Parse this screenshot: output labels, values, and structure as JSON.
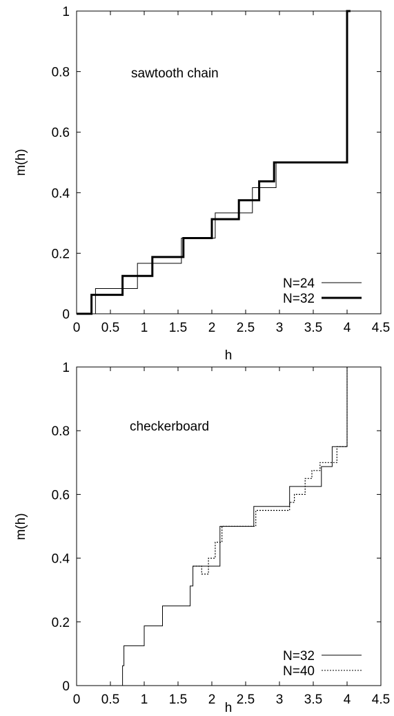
{
  "chart_data": [
    {
      "type": "line",
      "title": "",
      "annotation": "sawtooth chain",
      "xlabel": "h",
      "ylabel": "m(h)",
      "xlim": [
        0,
        4.5
      ],
      "ylim": [
        0,
        1
      ],
      "xticks": [
        0,
        0.5,
        1,
        1.5,
        2,
        2.5,
        3,
        3.5,
        4,
        4.5
      ],
      "xtick_labels": [
        "0",
        "0.5",
        "1",
        "1.5",
        "2",
        "2.5",
        "3",
        "3.5",
        "4",
        "4.5"
      ],
      "yticks": [
        0,
        0.2,
        0.4,
        0.6,
        0.8,
        1
      ],
      "ytick_labels": [
        "0",
        "0.2",
        "0.4",
        "0.6",
        "0.8",
        "1"
      ],
      "legend_position": "bottom-right",
      "series": [
        {
          "name": "N=24",
          "style": "thin",
          "x": [
            0,
            0.28,
            0.28,
            0.9,
            0.9,
            1.2,
            1.2,
            1.55,
            1.55,
            2.05,
            2.05,
            2.45,
            2.45,
            2.6,
            2.6,
            2.8,
            2.8,
            2.95,
            2.95,
            4.0,
            4.0,
            4.05
          ],
          "y": [
            0,
            0,
            0.0833,
            0.0833,
            0.1667,
            0.1667,
            0.1667,
            0.1667,
            0.25,
            0.25,
            0.3333,
            0.3333,
            0.3333,
            0.3333,
            0.4167,
            0.4167,
            0.4167,
            0.4167,
            0.5,
            0.5,
            1.0,
            1.0
          ]
        },
        {
          "name": "N=32",
          "style": "thick",
          "x": [
            0,
            0.22,
            0.22,
            0.68,
            0.68,
            1.12,
            1.12,
            1.58,
            1.58,
            2.0,
            2.0,
            2.4,
            2.4,
            2.7,
            2.7,
            2.92,
            2.92,
            4.0,
            4.0,
            4.05
          ],
          "y": [
            0,
            0,
            0.0625,
            0.0625,
            0.125,
            0.125,
            0.1875,
            0.1875,
            0.25,
            0.25,
            0.3125,
            0.3125,
            0.375,
            0.375,
            0.4375,
            0.4375,
            0.5,
            0.5,
            1.0,
            1.0
          ]
        }
      ]
    },
    {
      "type": "line",
      "title": "",
      "annotation": "checkerboard",
      "xlabel": "h",
      "ylabel": "m(h)",
      "xlim": [
        0,
        4.5
      ],
      "ylim": [
        0,
        1
      ],
      "xticks": [
        0,
        0.5,
        1,
        1.5,
        2,
        2.5,
        3,
        3.5,
        4,
        4.5
      ],
      "xtick_labels": [
        "0",
        "0.5",
        "1",
        "1.5",
        "2",
        "2.5",
        "3",
        "3.5",
        "4",
        "4.5"
      ],
      "yticks": [
        0,
        0.2,
        0.4,
        0.6,
        0.8,
        1
      ],
      "ytick_labels": [
        "0",
        "0.2",
        "0.4",
        "0.6",
        "0.8",
        "1"
      ],
      "legend_position": "bottom-right",
      "series": [
        {
          "name": "N=32",
          "style": "solid",
          "x": [
            0,
            0.68,
            0.68,
            0.7,
            0.7,
            1.0,
            1.0,
            1.27,
            1.27,
            1.68,
            1.68,
            1.72,
            1.72,
            2.12,
            2.12,
            2.62,
            2.62,
            3.15,
            3.15,
            3.62,
            3.62,
            3.78,
            3.78,
            4.0,
            4.0
          ],
          "y": [
            0,
            0,
            0.0625,
            0.0625,
            0.125,
            0.125,
            0.1875,
            0.1875,
            0.25,
            0.25,
            0.3125,
            0.3125,
            0.375,
            0.375,
            0.5,
            0.5,
            0.5625,
            0.5625,
            0.625,
            0.625,
            0.6875,
            0.6875,
            0.75,
            0.75,
            1.0
          ]
        },
        {
          "name": "N=40",
          "style": "dotted",
          "x": [
            1.72,
            1.85,
            1.85,
            1.95,
            1.95,
            2.05,
            2.05,
            2.15,
            2.15,
            2.65,
            2.65,
            3.15,
            3.15,
            3.22,
            3.22,
            3.38,
            3.38,
            3.48,
            3.48,
            3.6,
            3.6,
            3.85,
            3.85,
            4.0,
            4.0
          ],
          "y": [
            0.375,
            0.375,
            0.35,
            0.35,
            0.4,
            0.4,
            0.45,
            0.45,
            0.5,
            0.5,
            0.55,
            0.55,
            0.575,
            0.575,
            0.6,
            0.6,
            0.65,
            0.65,
            0.675,
            0.675,
            0.7,
            0.7,
            0.75,
            0.75,
            1.0
          ]
        }
      ]
    }
  ]
}
